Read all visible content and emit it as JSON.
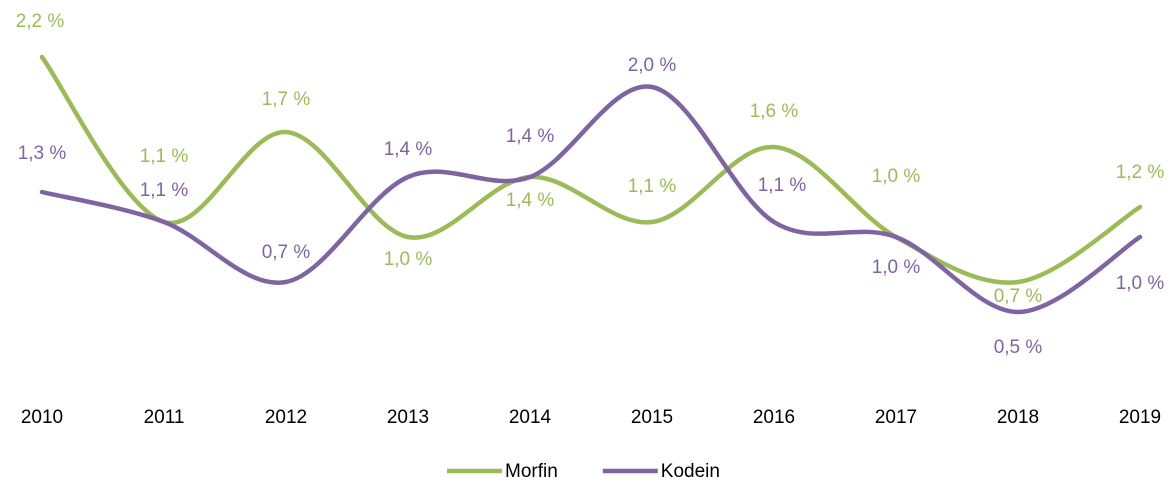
{
  "chart_data": {
    "type": "line",
    "categories": [
      "2010",
      "2011",
      "2012",
      "2013",
      "2014",
      "2015",
      "2016",
      "2017",
      "2018",
      "2019"
    ],
    "series": [
      {
        "name": "Morfin",
        "color": "#9bbb59",
        "values": [
          2.2,
          1.1,
          1.7,
          1.0,
          1.4,
          1.1,
          1.6,
          1.0,
          0.7,
          1.2
        ],
        "value_labels": [
          "2,2 %",
          "1,1 %",
          "1,7 %",
          "1,0 %",
          "1,4 %",
          "1,1 %",
          "1,6 %",
          "1,0 %",
          "0,7 %",
          "1,2 %"
        ]
      },
      {
        "name": "Kodein",
        "color": "#8064a2",
        "values": [
          1.3,
          1.1,
          0.7,
          1.4,
          1.4,
          2.0,
          1.1,
          1.0,
          0.5,
          1.0
        ],
        "value_labels": [
          "1,3 %",
          "1,1 %",
          "0,7 %",
          "1,4 %",
          "1,4 %",
          "2,0 %",
          "1,1 %",
          "1,0 %",
          "0,5 %",
          "1,0 %"
        ]
      }
    ],
    "ylim": [
      0,
      2.5
    ],
    "legend": "bottom"
  }
}
